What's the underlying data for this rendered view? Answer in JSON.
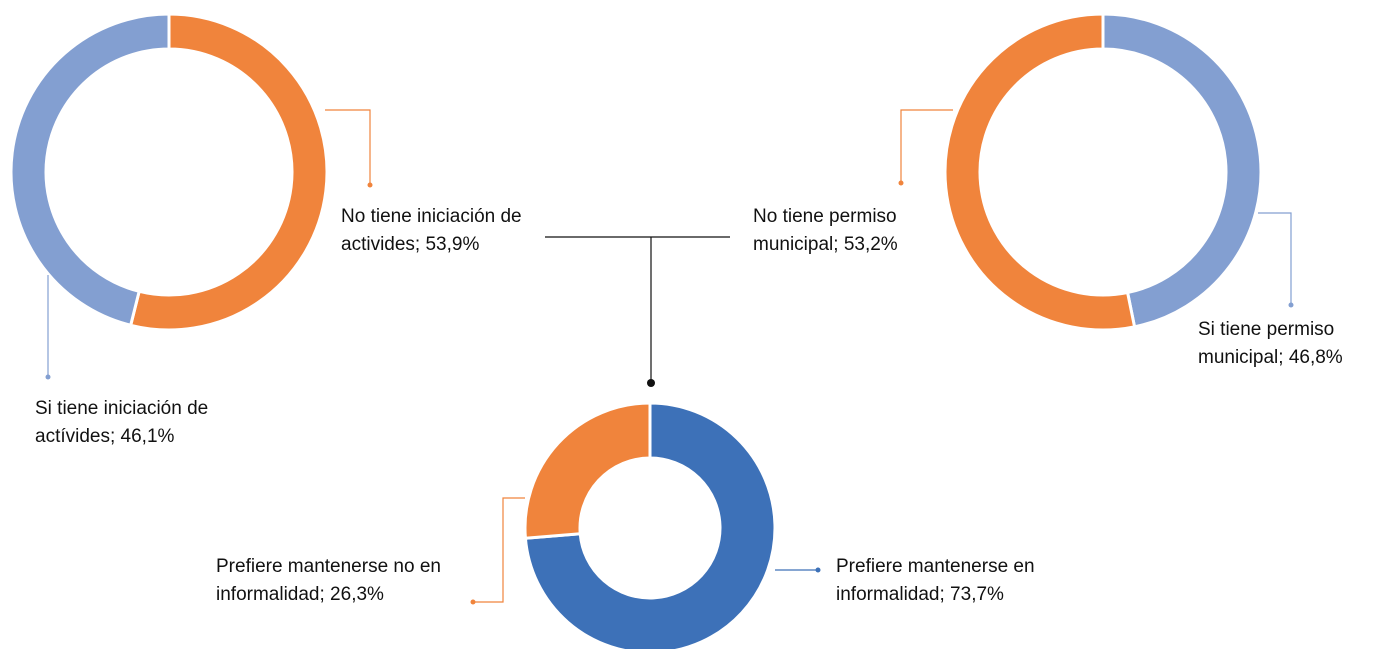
{
  "chart_data": [
    {
      "type": "pie",
      "values": [
        53.9,
        46.1
      ],
      "value_labels": [
        "No tiene iniciación de activides; 53,9%",
        "Si tiene iniciación de actívides; 46,1%"
      ],
      "colors": [
        "#f0843c",
        "#839fd1"
      ]
    },
    {
      "type": "pie",
      "values": [
        46.8,
        53.2
      ],
      "value_labels": [
        "Si tiene permiso municipal; 46,8%",
        "No tiene permiso municipal; 53,2%"
      ],
      "colors": [
        "#839fd1",
        "#f0843c"
      ]
    },
    {
      "type": "pie",
      "values": [
        73.7,
        26.3
      ],
      "value_labels": [
        "Prefiere mantenerse en informalidad; 73,7%",
        "Prefiere mantenerse no en informalidad; 26,3%"
      ],
      "colors": [
        "#3d71b8",
        "#f0843c"
      ]
    }
  ]
}
